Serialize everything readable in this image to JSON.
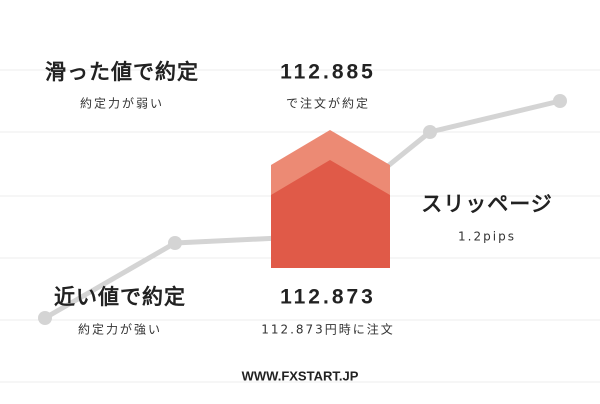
{
  "top_left": {
    "title": "滑った値で約定",
    "subtitle": "約定力が弱い"
  },
  "top_center": {
    "price": "112.885",
    "note": "で注文が約定"
  },
  "right": {
    "title": "スリッページ",
    "note": "1.2pips"
  },
  "bottom_left": {
    "title": "近い値で約定",
    "subtitle": "約定力が強い"
  },
  "bottom_center": {
    "price": "112.873",
    "note": "112.873円時に注文"
  },
  "footer": {
    "url": "WWW.FXSTART.JP"
  }
}
